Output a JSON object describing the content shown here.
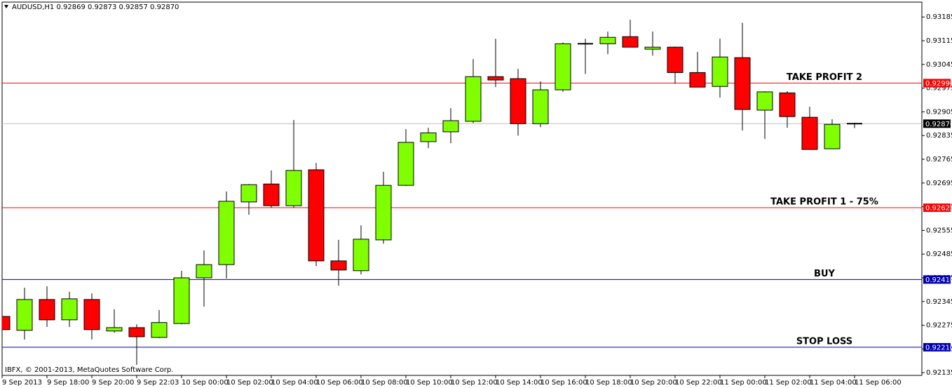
{
  "chart_data": {
    "type": "candlestick",
    "header": "AUDUSD,H1  0.92869 0.92873 0.92857 0.92870",
    "footer": "IBFX, © 2001-2013, MetaQuotes Software Corp.",
    "categories": [
      "9 Sep 2013",
      null,
      "9 Sep 18:00",
      null,
      "9 Sep 20:00",
      null,
      "9 Sep 22:03",
      null,
      "10 Sep 00:00",
      null,
      "10 Sep 02:00",
      null,
      "10 Sep 04:00",
      null,
      "10 Sep 06:00",
      null,
      "10 Sep 08:00",
      null,
      "10 Sep 10:00",
      null,
      "10 Sep 12:00",
      null,
      "10 Sep 14:00",
      null,
      "10 Sep 16:00",
      null,
      "10 Sep 18:00",
      null,
      "10 Sep 20:00",
      null,
      "10 Sep 22:00",
      null,
      "11 Sep 00:00",
      null,
      "11 Sep 02:00",
      null,
      "11 Sep 04:00",
      null,
      "11 Sep 06:00"
    ],
    "open": [
      0.92301,
      0.9226,
      0.92351,
      0.92291,
      0.92351,
      0.92258,
      0.92268,
      0.92239,
      0.9228,
      0.92415,
      0.92454,
      0.92639,
      0.92692,
      0.92628,
      0.92734,
      0.92465,
      0.92436,
      0.92527,
      0.92688,
      0.92817,
      0.92846,
      0.92877,
      0.93009,
      0.93003,
      0.9287,
      0.9297,
      0.93104,
      0.93106,
      0.93127,
      0.9309,
      0.93096,
      0.93021,
      0.9298,
      0.93065,
      0.9291,
      0.92961,
      0.92889,
      0.92796,
      0.92869
    ],
    "high": [
      0.92313,
      0.92386,
      0.9239,
      0.92374,
      0.92369,
      0.92322,
      0.92278,
      0.9232,
      0.92436,
      0.92496,
      0.9267,
      0.92692,
      0.92732,
      0.92881,
      0.92754,
      0.92527,
      0.9257,
      0.92728,
      0.92854,
      0.92858,
      0.92916,
      0.93061,
      0.93121,
      0.93032,
      0.92995,
      0.9311,
      0.93121,
      0.93142,
      0.93177,
      0.93142,
      0.93098,
      0.93082,
      0.93121,
      0.93168,
      0.92966,
      0.92966,
      0.9292,
      0.92883,
      0.92873
    ],
    "low": [
      0.92245,
      0.92233,
      0.9227,
      0.9227,
      0.92233,
      0.92253,
      0.92158,
      0.92237,
      0.92278,
      0.9233,
      0.92413,
      0.92601,
      0.92622,
      0.92622,
      0.9245,
      0.92392,
      0.92425,
      0.92516,
      0.92686,
      0.92798,
      0.92812,
      0.92872,
      0.92978,
      0.92835,
      0.9286,
      0.92964,
      0.93017,
      0.93075,
      0.93096,
      0.93071,
      0.92988,
      0.92978,
      0.92947,
      0.9285,
      0.92825,
      0.92858,
      0.92794,
      0.92796,
      0.92857
    ],
    "close": [
      0.92262,
      0.92351,
      0.92291,
      0.92353,
      0.92262,
      0.92268,
      0.92241,
      0.92283,
      0.92415,
      0.92454,
      0.92641,
      0.9269,
      0.92628,
      0.92732,
      0.92465,
      0.92438,
      0.92529,
      0.92688,
      0.92815,
      0.92843,
      0.92879,
      0.93009,
      0.92999,
      0.9287,
      0.9297,
      0.93106,
      0.93106,
      0.93125,
      0.93096,
      0.93096,
      0.93021,
      0.92978,
      0.93067,
      0.92912,
      0.92964,
      0.92891,
      0.92794,
      0.92868,
      0.9287
    ],
    "up_color": "#7fff00",
    "down_color": "#ff0000",
    "ylim": [
      0.92127,
      0.93229
    ],
    "yticks": [
      0.93185,
      0.93115,
      0.93045,
      0.92975,
      0.92905,
      0.92835,
      0.92765,
      0.92695,
      0.92625,
      0.92555,
      0.92485,
      0.92415,
      0.92345,
      0.92275,
      0.92205,
      0.92135
    ],
    "grid": false,
    "levels": [
      {
        "value": 0.9299,
        "label": "0.92990",
        "color": "#ff0000",
        "text": "TAKE PROFIT 2"
      },
      {
        "value": 0.92622,
        "label": "0.92622",
        "color": "#ff0000",
        "text": "TAKE PROFIT 1 - 75%"
      },
      {
        "value": 0.9241,
        "label": "0.92410",
        "color": "#0000b0",
        "text": "BUY"
      },
      {
        "value": 0.9221,
        "label": "0.92210",
        "color": "#0000b0",
        "text": "STOP LOSS"
      }
    ],
    "bid": {
      "value": 0.9287,
      "label": "0.92870",
      "color": "#c0c0c0"
    }
  }
}
